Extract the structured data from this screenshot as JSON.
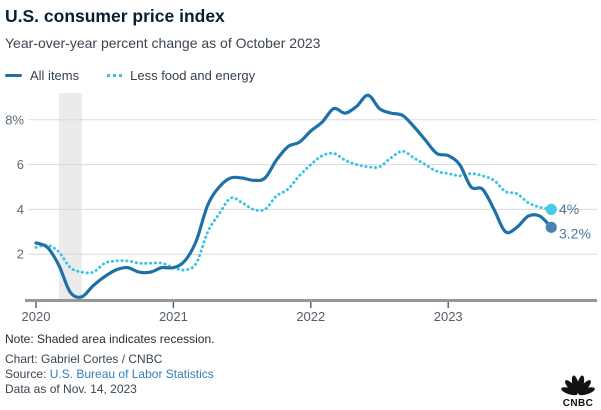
{
  "header": {
    "title": "U.S. consumer price index",
    "subtitle": "Year-over-year percent change as of October 2023"
  },
  "legend": [
    {
      "label": "All items",
      "color": "#1E71A8",
      "style": "solid"
    },
    {
      "label": "Less food and energy",
      "color": "#35C4E2",
      "style": "dotted"
    }
  ],
  "chart_data": {
    "type": "line",
    "title": "U.S. consumer price index",
    "subtitle": "Year-over-year percent change as of October 2023",
    "x_unit": "month",
    "x_range": [
      "2020-01",
      "2023-10"
    ],
    "x_tick_labels": [
      "2020",
      "2021",
      "2022",
      "2023"
    ],
    "x_tick_month_index": [
      0,
      12,
      24,
      36
    ],
    "y_tick_values": [
      2,
      4,
      6,
      8
    ],
    "y_tick_labels": [
      "2",
      "4",
      "6",
      "8%"
    ],
    "ylim": [
      0,
      9.2
    ],
    "grid": "horizontal",
    "legend_position": "top-left",
    "recession_band_month_index": [
      2,
      4
    ],
    "series": [
      {
        "name": "All items",
        "style": "solid",
        "color": "#1E71A8",
        "end_label": "3.2%",
        "end_dot_color": "#4A83B1",
        "values": [
          2.5,
          2.3,
          1.5,
          0.3,
          0.1,
          0.6,
          1.0,
          1.3,
          1.4,
          1.2,
          1.2,
          1.4,
          1.4,
          1.7,
          2.6,
          4.2,
          5.0,
          5.4,
          5.4,
          5.3,
          5.4,
          6.2,
          6.8,
          7.0,
          7.5,
          7.9,
          8.5,
          8.3,
          8.6,
          9.1,
          8.5,
          8.3,
          8.2,
          7.7,
          7.1,
          6.5,
          6.4,
          6.0,
          5.0,
          4.9,
          4.0,
          3.0,
          3.2,
          3.7,
          3.7,
          3.2
        ]
      },
      {
        "name": "Less food and energy",
        "style": "dotted",
        "color": "#35C4E2",
        "end_label": "4%",
        "end_dot_color": "#47C9EA",
        "values": [
          2.3,
          2.4,
          2.1,
          1.4,
          1.2,
          1.2,
          1.6,
          1.7,
          1.7,
          1.6,
          1.6,
          1.6,
          1.4,
          1.3,
          1.6,
          3.0,
          3.8,
          4.5,
          4.3,
          4.0,
          4.0,
          4.6,
          4.9,
          5.5,
          6.0,
          6.4,
          6.5,
          6.2,
          6.0,
          5.9,
          5.9,
          6.3,
          6.6,
          6.3,
          6.0,
          5.7,
          5.6,
          5.5,
          5.6,
          5.5,
          5.3,
          4.8,
          4.7,
          4.3,
          4.1,
          4.0
        ]
      }
    ]
  },
  "colors": {
    "title": "#0A1E32",
    "subtitle": "#3C4650",
    "axis_label": "#53606C",
    "y_label": "#5B6A76",
    "gridline": "#DADADA",
    "axis_line": "#979797",
    "tick_mark": "#555555",
    "recession_band": "#EBEBEB",
    "end_label": "#4E7697",
    "link": "#2F7FC0"
  },
  "footer": {
    "note": "Note: Shaded area indicates recession.",
    "credit": "Chart: Gabriel Cortes / CNBC",
    "source_label": "Source: ",
    "source_link": "U.S. Bureau of Labor Statistics",
    "data_as_of": "Data as of Nov. 14, 2023"
  },
  "logo": {
    "brand": "CNBC"
  }
}
